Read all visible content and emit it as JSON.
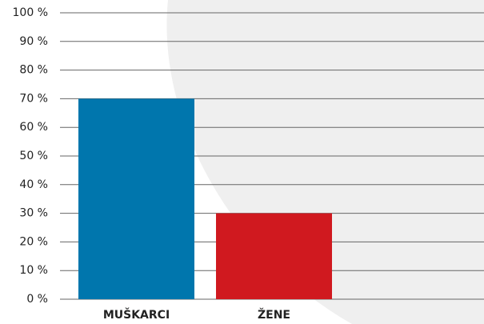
{
  "chart_data": {
    "type": "bar",
    "categories": [
      "MUŠKARCI",
      "ŽENE"
    ],
    "values": [
      70,
      30
    ],
    "colors": [
      "#0076ad",
      "#d0191f"
    ],
    "ylim": [
      0,
      100
    ],
    "yticks": [
      {
        "value": 0,
        "label": "0 %"
      },
      {
        "value": 10,
        "label": "10 %"
      },
      {
        "value": 20,
        "label": "20 %"
      },
      {
        "value": 30,
        "label": "30 %"
      },
      {
        "value": 40,
        "label": "40 %"
      },
      {
        "value": 50,
        "label": "50 %"
      },
      {
        "value": 60,
        "label": "60 %"
      },
      {
        "value": 70,
        "label": "70 %"
      },
      {
        "value": 80,
        "label": "80 %"
      },
      {
        "value": 90,
        "label": "90 %"
      },
      {
        "value": 100,
        "label": "100 %"
      }
    ],
    "grid": true
  }
}
